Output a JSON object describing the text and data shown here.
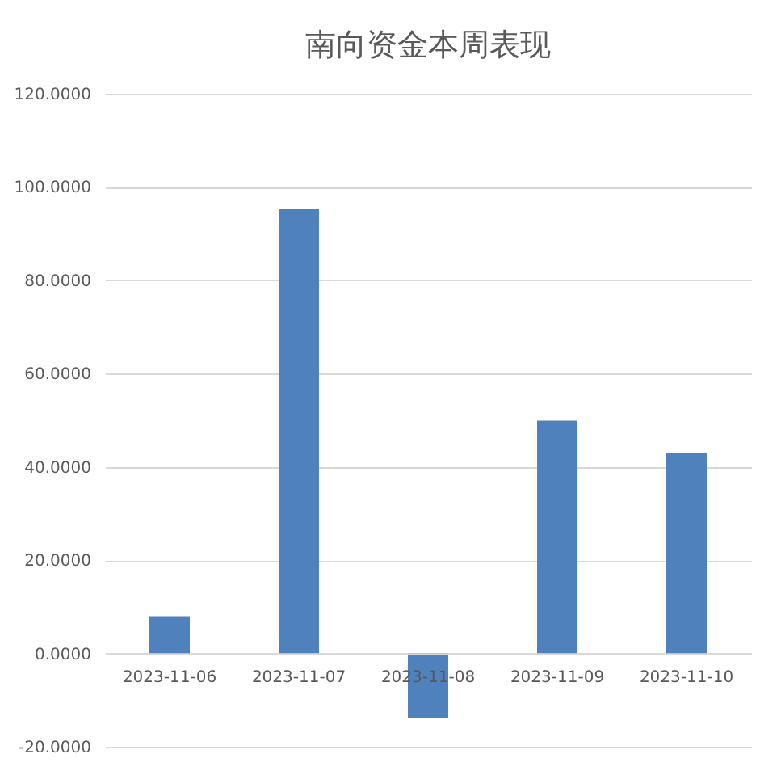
{
  "chart_data": {
    "type": "bar",
    "title": "南向资金本周表现",
    "categories": [
      "2023-11-06",
      "2023-11-07",
      "2023-11-08",
      "2023-11-09",
      "2023-11-10"
    ],
    "values": [
      8.0,
      95.3,
      -13.8,
      49.9,
      43.0
    ],
    "color": "#4f81bd",
    "ylim": [
      -20,
      120
    ],
    "yticks": [
      {
        "value": -20,
        "label": "-20.0000"
      },
      {
        "value": 0,
        "label": "0.0000"
      },
      {
        "value": 20,
        "label": "20.0000"
      },
      {
        "value": 40,
        "label": "40.0000"
      },
      {
        "value": 60,
        "label": "60.0000"
      },
      {
        "value": 80,
        "label": "80.0000"
      },
      {
        "value": 100,
        "label": "100.0000"
      },
      {
        "value": 120,
        "label": "120.0000"
      }
    ],
    "grid": "y"
  }
}
